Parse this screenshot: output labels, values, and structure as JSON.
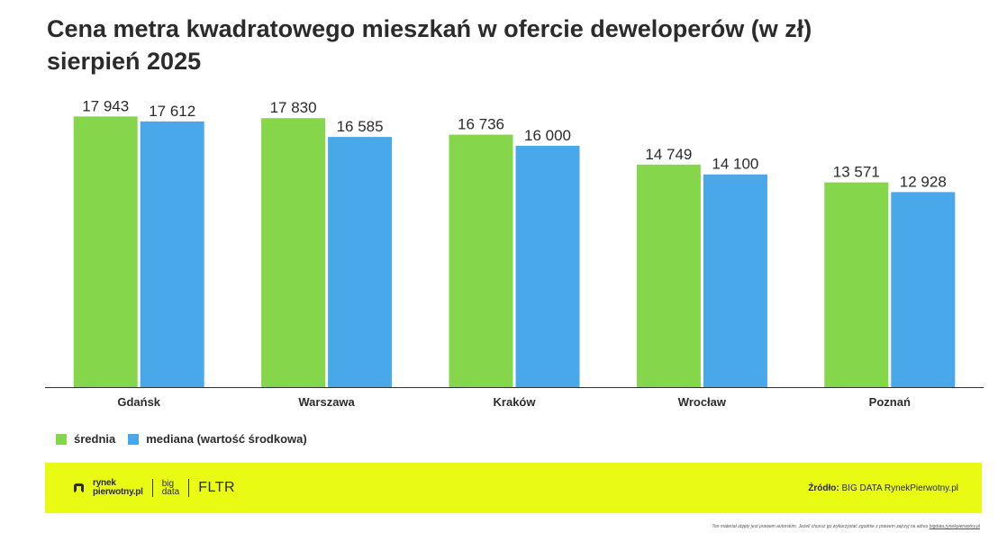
{
  "title": {
    "line1": "Cena metra kwadratowego mieszkań w ofercie deweloperów (w zł)",
    "line2": "sierpień 2025"
  },
  "chart_data": {
    "type": "bar",
    "categories": [
      "Gdańsk",
      "Warszawa",
      "Kraków",
      "Wrocław",
      "Poznań"
    ],
    "series": [
      {
        "name": "średnia",
        "values": [
          17943,
          17830,
          16736,
          14749,
          13571
        ],
        "labels": [
          "17 943",
          "17 830",
          "16 736",
          "14 749",
          "13 571"
        ],
        "color": "#86d64b"
      },
      {
        "name": "mediana (wartość środkowa)",
        "values": [
          17612,
          16585,
          16000,
          14100,
          12928
        ],
        "labels": [
          "17 612",
          "16 585",
          "16 000",
          "14 100",
          "12 928"
        ],
        "color": "#48a8ea"
      }
    ],
    "ylim": [
      0,
      18500
    ],
    "grid": false,
    "legend": "bottom-left"
  },
  "legend": {
    "items": [
      {
        "label": "średnia",
        "color": "#86d64b"
      },
      {
        "label": "mediana (wartość środkowa)",
        "color": "#48a8ea"
      }
    ]
  },
  "footer": {
    "background": "#e9fb12",
    "brand_line1": "rynek",
    "brand_line2": "pierwotny.pl",
    "brand_small1": "big",
    "brand_small2": "data",
    "brand_fltr": "FLTR",
    "source_label": "Źródło:",
    "source_value": "BIG DATA RynekPierwotny.pl"
  },
  "disclaimer": {
    "text": "Ten materiał objęty jest prawem autorskim. Jeżeli chcesz go wykorzystać zgodnie z prawem zajrzyj na adres",
    "link": "bigdata.rynekpierwotny.pl"
  }
}
